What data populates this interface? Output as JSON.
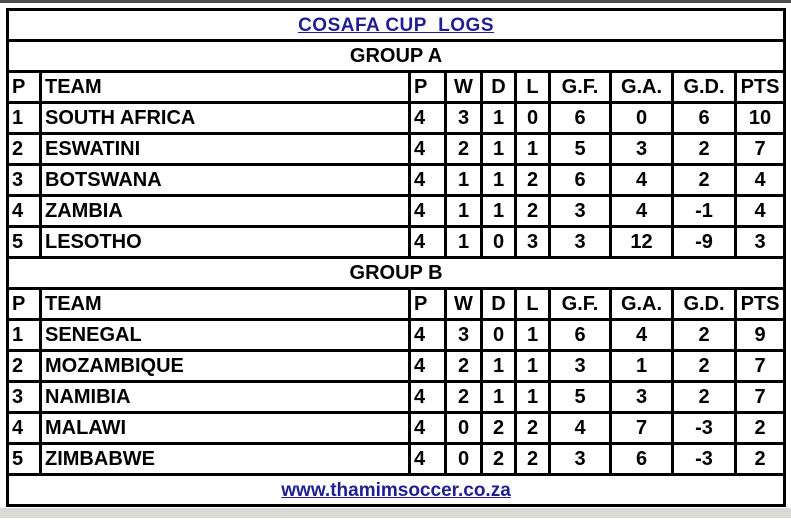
{
  "page": {
    "title": "COSAFA CUP  LOGS",
    "footer_url": "www.thamimsoccer.co.za",
    "colors": {
      "title_navy": "#1f1f93",
      "border_black": "#000000",
      "background": "#ffffff",
      "top_edge_gray": "#4d4d4d",
      "bottom_edge_gray": "#d9d9d5"
    }
  },
  "chart_data": {
    "type": "table",
    "title": "COSAFA CUP  LOGS",
    "columns": [
      "P",
      "TEAM",
      "P",
      "W",
      "D",
      "L",
      "G.F.",
      "G.A.",
      "G.D.",
      "PTS"
    ],
    "groups": [
      {
        "name": "GROUP A",
        "rows": [
          [
            "1",
            "SOUTH AFRICA",
            "4",
            "3",
            "1",
            "0",
            "6",
            "0",
            "6",
            "10"
          ],
          [
            "2",
            "ESWATINI",
            "4",
            "2",
            "1",
            "1",
            "5",
            "3",
            "2",
            "7"
          ],
          [
            "3",
            "BOTSWANA",
            "4",
            "1",
            "1",
            "2",
            "6",
            "4",
            "2",
            "4"
          ],
          [
            "4",
            "ZAMBIA",
            "4",
            "1",
            "1",
            "2",
            "3",
            "4",
            "-1",
            "4"
          ],
          [
            "5",
            "LESOTHO",
            "4",
            "1",
            "0",
            "3",
            "3",
            "12",
            "-9",
            "3"
          ]
        ]
      },
      {
        "name": "GROUP B",
        "rows": [
          [
            "1",
            "SENEGAL",
            "4",
            "3",
            "0",
            "1",
            "6",
            "4",
            "2",
            "9"
          ],
          [
            "2",
            "MOZAMBIQUE",
            "4",
            "2",
            "1",
            "1",
            "3",
            "1",
            "2",
            "7"
          ],
          [
            "3",
            "NAMIBIA",
            "4",
            "2",
            "1",
            "1",
            "5",
            "3",
            "2",
            "7"
          ],
          [
            "4",
            "MALAWI",
            "4",
            "0",
            "2",
            "2",
            "4",
            "7",
            "-3",
            "2"
          ],
          [
            "5",
            "ZIMBABWE",
            "4",
            "0",
            "2",
            "2",
            "3",
            "6",
            "-3",
            "2"
          ]
        ]
      }
    ]
  }
}
